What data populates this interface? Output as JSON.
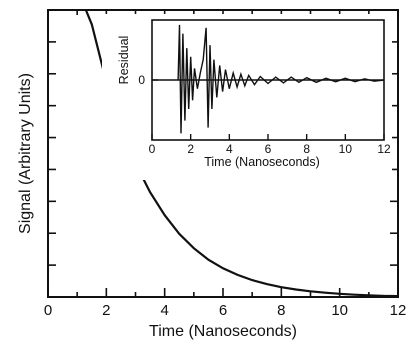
{
  "chart_data": [
    {
      "type": "line",
      "title": "",
      "xlabel": "Time (Nanoseconds)",
      "ylabel": "Signal (Arbitrary Units)",
      "xlim": [
        0,
        12
      ],
      "ylim": [
        0,
        1
      ],
      "xticks": [
        0,
        2,
        4,
        6,
        8,
        10,
        12
      ],
      "xtick_labels": [
        "0",
        "2",
        "4",
        "6",
        "8",
        "10",
        "12"
      ],
      "y_tick_count": 9,
      "y_tick_labels_shown": false,
      "grid": false,
      "series": [
        {
          "x": [
            1.3,
            1.5,
            2.0,
            2.5,
            3.0,
            3.5,
            4.0,
            4.5,
            5.0,
            5.5,
            6.0,
            6.5,
            7.0,
            7.5,
            8.0,
            8.5,
            9.0,
            9.5,
            10.0,
            10.5,
            11.0,
            11.5,
            12.0
          ],
          "y": [
            1.03,
            0.95,
            0.75,
            0.59,
            0.465,
            0.365,
            0.285,
            0.22,
            0.17,
            0.13,
            0.1,
            0.077,
            0.059,
            0.045,
            0.034,
            0.026,
            0.02,
            0.015,
            0.011,
            0.008,
            0.006,
            0.004,
            0.003
          ]
        }
      ]
    },
    {
      "type": "line",
      "title": "",
      "xlabel": "Time (Nanoseconds)",
      "ylabel": "Residual",
      "xlim": [
        0,
        12
      ],
      "ylim": [
        -1,
        1
      ],
      "xticks": [
        0,
        2,
        4,
        6,
        8,
        10,
        12
      ],
      "xtick_labels": [
        "0",
        "2",
        "4",
        "6",
        "8",
        "10",
        "12"
      ],
      "yticks": [
        0
      ],
      "ytick_labels": [
        "0"
      ],
      "grid": false,
      "series": [
        {
          "x": [
            1.35,
            1.42,
            1.5,
            1.6,
            1.7,
            1.8,
            1.9,
            2.0,
            2.1,
            2.2,
            2.35,
            2.5,
            2.65,
            2.8,
            2.9,
            3.0,
            3.1,
            3.2,
            3.35,
            3.5,
            3.65,
            3.8,
            4.0,
            4.2,
            4.4,
            4.6,
            4.8,
            5.0,
            5.3,
            5.6,
            6.0,
            6.4,
            6.8,
            7.2,
            7.6,
            8.0,
            8.5,
            9.0,
            9.5,
            10.0,
            10.5,
            11.0,
            11.5,
            12.0
          ],
          "y": [
            0.0,
            0.95,
            -0.92,
            0.8,
            -0.7,
            0.55,
            -0.5,
            0.4,
            -0.35,
            0.2,
            -0.15,
            0.12,
            0.35,
            0.9,
            -0.82,
            0.6,
            -0.5,
            0.35,
            -0.3,
            0.25,
            -0.2,
            0.18,
            -0.15,
            0.12,
            -0.12,
            0.1,
            -0.1,
            0.08,
            -0.08,
            0.06,
            -0.06,
            0.05,
            -0.05,
            0.05,
            -0.04,
            0.04,
            -0.04,
            0.03,
            -0.03,
            0.03,
            -0.03,
            0.02,
            -0.02,
            0.0
          ]
        }
      ]
    }
  ]
}
